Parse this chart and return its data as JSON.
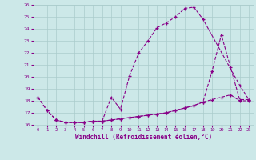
{
  "xlabel": "Windchill (Refroidissement éolien,°C)",
  "background_color": "#cce8e8",
  "grid_color": "#aacccc",
  "line_color": "#880088",
  "xlim": [
    -0.5,
    23.5
  ],
  "ylim": [
    16,
    26
  ],
  "yticks": [
    16,
    17,
    18,
    19,
    20,
    21,
    22,
    23,
    24,
    25,
    26
  ],
  "xticks": [
    0,
    1,
    2,
    3,
    4,
    5,
    6,
    7,
    8,
    9,
    10,
    11,
    12,
    13,
    14,
    15,
    16,
    17,
    18,
    19,
    20,
    21,
    22,
    23
  ],
  "line1_x": [
    0,
    1,
    2,
    3,
    4,
    5,
    6,
    7,
    8,
    9,
    10,
    11,
    12,
    13,
    14,
    15,
    16,
    17,
    18,
    22,
    23
  ],
  "line1_y": [
    18.3,
    17.2,
    16.4,
    16.2,
    16.2,
    16.2,
    16.3,
    16.3,
    18.3,
    17.3,
    20.1,
    22.0,
    23.0,
    24.1,
    24.5,
    25.0,
    25.7,
    25.8,
    24.8,
    19.3,
    18.1
  ],
  "line2_x": [
    0,
    1,
    2,
    3,
    4,
    5,
    6,
    7,
    8,
    9,
    10,
    11,
    12,
    13,
    14,
    15,
    16,
    17,
    18,
    19,
    20,
    21,
    22,
    23
  ],
  "line2_y": [
    18.3,
    17.2,
    16.4,
    16.2,
    16.2,
    16.2,
    16.3,
    16.3,
    16.4,
    16.5,
    16.6,
    16.7,
    16.8,
    16.9,
    17.0,
    17.2,
    17.4,
    17.6,
    17.9,
    18.1,
    18.3,
    18.5,
    18.0,
    18.0
  ],
  "line3_x": [
    2,
    3,
    4,
    5,
    6,
    7,
    8,
    9,
    10,
    11,
    12,
    13,
    14,
    15,
    16,
    17,
    18,
    19,
    20,
    21,
    22,
    23
  ],
  "line3_y": [
    16.4,
    16.2,
    16.2,
    16.2,
    16.3,
    16.3,
    16.4,
    16.5,
    16.6,
    16.7,
    16.8,
    16.9,
    17.0,
    17.2,
    17.4,
    17.6,
    17.9,
    20.5,
    23.5,
    20.8,
    18.1,
    18.1
  ]
}
